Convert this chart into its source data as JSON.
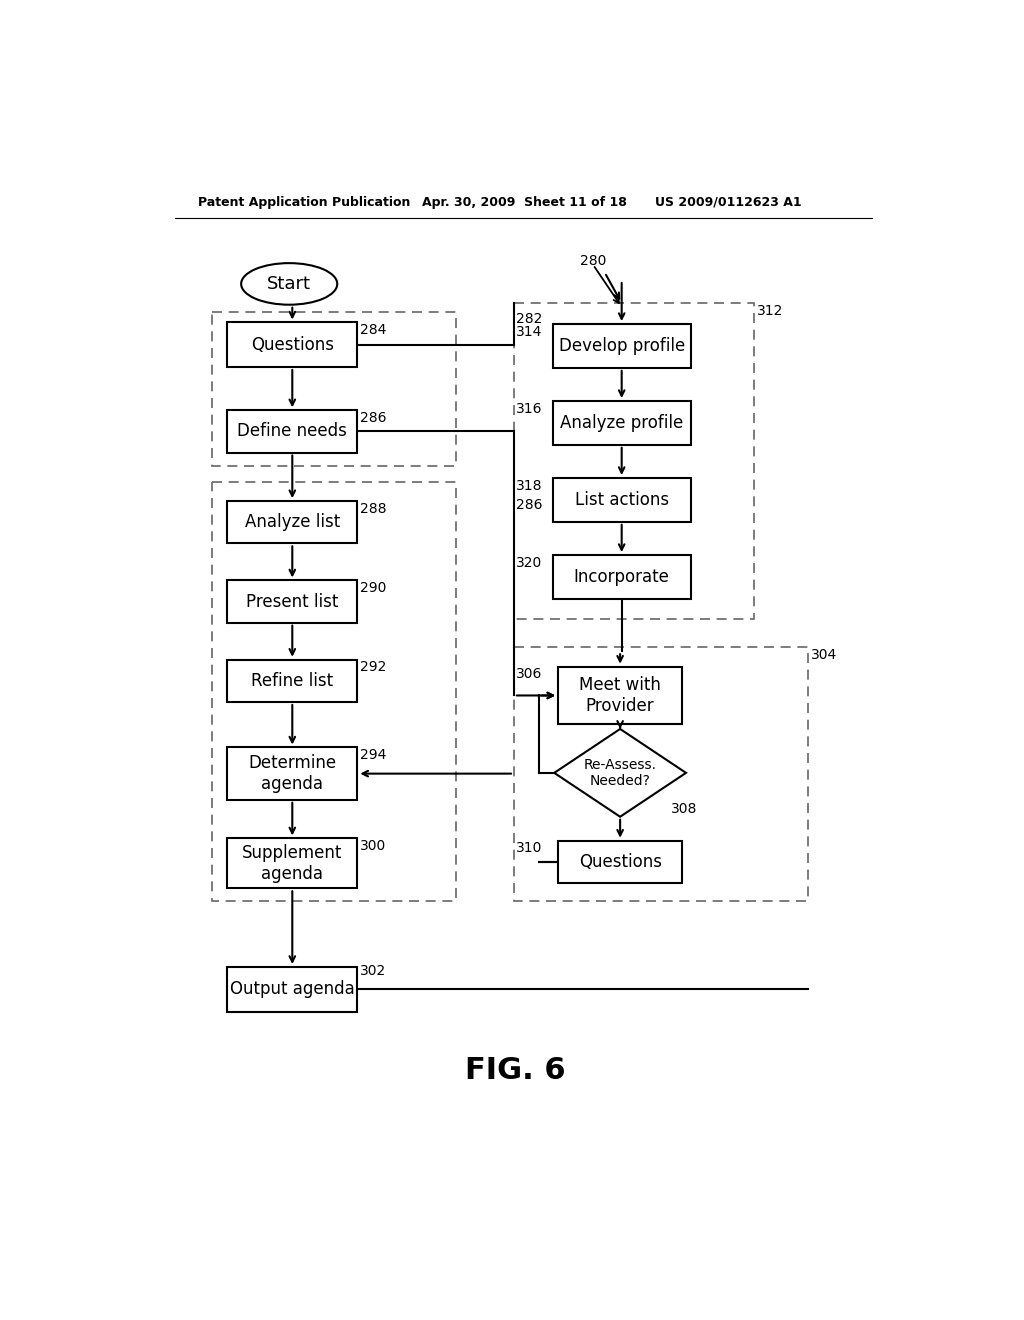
{
  "page_header_left": "Patent Application Publication",
  "page_header_mid": "Apr. 30, 2009  Sheet 11 of 18",
  "page_header_right": "US 2009/0112623 A1",
  "fig_label": "FIG. 6",
  "bg_color": "#ffffff",
  "line_color": "#000000",
  "box_label_color": "#000000",
  "dashed_box_color": "#666666"
}
